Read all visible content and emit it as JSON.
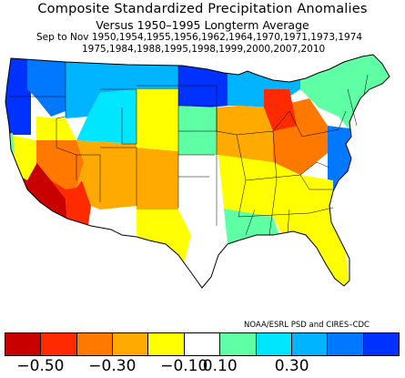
{
  "title": {
    "line1": "Composite Standardized Precipitation Anomalies",
    "line2": "Versus 1950–1995 Longterm Average",
    "line3": "Sep to Nov   1950,1954,1955,1956,1962,1964,1970,1971,1973,1974",
    "line4": "1975,1984,1988,1995,1998,1999,2000,2007,2010"
  },
  "credit": "NOAA/ESRL PSD and CIRES–CDC",
  "colorbar": {
    "colors": [
      "#c80000",
      "#ff2a00",
      "#ff7800",
      "#ffaa00",
      "#ffff00",
      "#ffffff",
      "#5fffa5",
      "#00e6ff",
      "#00b4ff",
      "#0078ff",
      "#0032ff"
    ],
    "ticks": [
      {
        "label": "−0.50",
        "boundary": 1
      },
      {
        "label": "−0.30",
        "boundary": 3
      },
      {
        "label": "−0.10",
        "boundary": 5
      },
      {
        "label": "0.10",
        "boundary": 6
      },
      {
        "label": "0.30",
        "boundary": 8
      }
    ]
  },
  "map_regions": [
    {
      "name": "pacific-northwest-coast",
      "color": "#0032ff"
    },
    {
      "name": "washington-oregon-interior",
      "color": "#0078ff"
    },
    {
      "name": "northern-rockies",
      "color": "#00b4ff"
    },
    {
      "name": "northern-plains-east",
      "color": "#0032ff"
    },
    {
      "name": "montana-north",
      "color": "#00b4ff"
    },
    {
      "name": "great-lakes-north",
      "color": "#00b4ff"
    },
    {
      "name": "new-england",
      "color": "#5fffa5"
    },
    {
      "name": "california-south",
      "color": "#c80000"
    },
    {
      "name": "southwest-desert",
      "color": "#ff2a00"
    },
    {
      "name": "great-basin",
      "color": "#ff7800"
    },
    {
      "name": "colorado-plateau",
      "color": "#ffaa00"
    },
    {
      "name": "central-valley",
      "color": "#ffff00"
    },
    {
      "name": "southern-rockies",
      "color": "#ffaa00"
    },
    {
      "name": "west-texas",
      "color": "#ffff00"
    },
    {
      "name": "central-plains",
      "color": "#ffff00"
    },
    {
      "name": "ohio-valley",
      "color": "#ff7800"
    },
    {
      "name": "illinois-indiana",
      "color": "#ffaa00"
    },
    {
      "name": "lower-michigan",
      "color": "#ff2a00"
    },
    {
      "name": "mid-atlantic-coast",
      "color": "#0078ff"
    },
    {
      "name": "southeast",
      "color": "#ffff00"
    },
    {
      "name": "florida",
      "color": "#ffff00"
    },
    {
      "name": "gulf-coast",
      "color": "#5fffa5"
    },
    {
      "name": "texas-east",
      "color": "#ffffff"
    },
    {
      "name": "kansas",
      "color": "#5fffa5"
    },
    {
      "name": "wyoming-south",
      "color": "#00e6ff"
    },
    {
      "name": "oregon-coast-south",
      "color": "#5fffa5"
    },
    {
      "name": "nevada-north",
      "color": "#ffff00"
    }
  ]
}
